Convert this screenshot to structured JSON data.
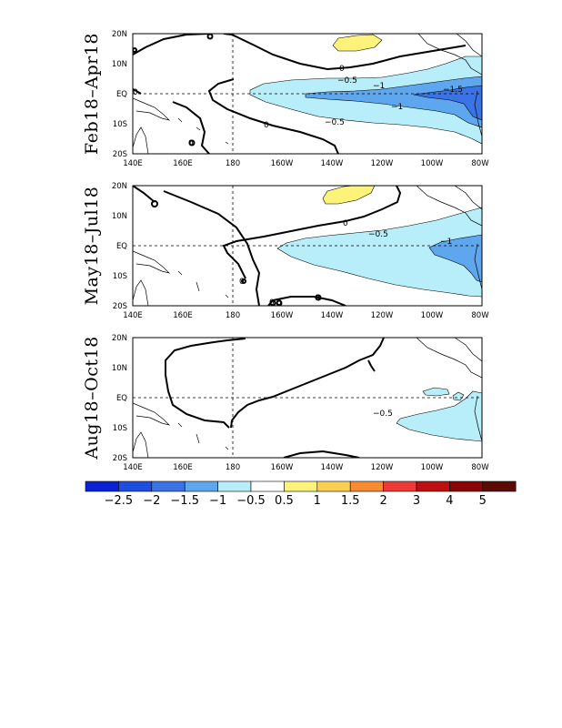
{
  "panels": [
    {
      "id": "p1",
      "label": "Feb18–Apr18",
      "contour_labels": [
        "0",
        "−0.5",
        "−1",
        "−1.5",
        "−1",
        "−0.5",
        "0",
        "0",
        "0"
      ]
    },
    {
      "id": "p2",
      "label": "May18–Jul18",
      "contour_labels": [
        "0",
        "−0.5",
        "−1",
        "0",
        "0",
        "0",
        "0"
      ]
    },
    {
      "id": "p3",
      "label": "Aug18–Oct18",
      "contour_labels": [
        "−0.5"
      ]
    }
  ],
  "axes": {
    "lon_ticks": [
      "140E",
      "160E",
      "180",
      "160W",
      "140W",
      "120W",
      "100W",
      "80W"
    ],
    "lat_ticks": [
      "20N",
      "10N",
      "EQ",
      "10S",
      "20S"
    ]
  },
  "colorbar": {
    "colors": [
      "#0b22d4",
      "#1e4ee0",
      "#3973e6",
      "#5ea7ef",
      "#b7eef9",
      "#ffffff",
      "#fdf37b",
      "#fbd052",
      "#f88b33",
      "#ef3b38",
      "#c00f11",
      "#8a0606",
      "#5a0b05"
    ],
    "labels": [
      "−2.5",
      "−2",
      "−1.5",
      "−1",
      "−0.5",
      "0.5",
      "1",
      "1.5",
      "2",
      "3",
      "4",
      "5"
    ]
  }
}
